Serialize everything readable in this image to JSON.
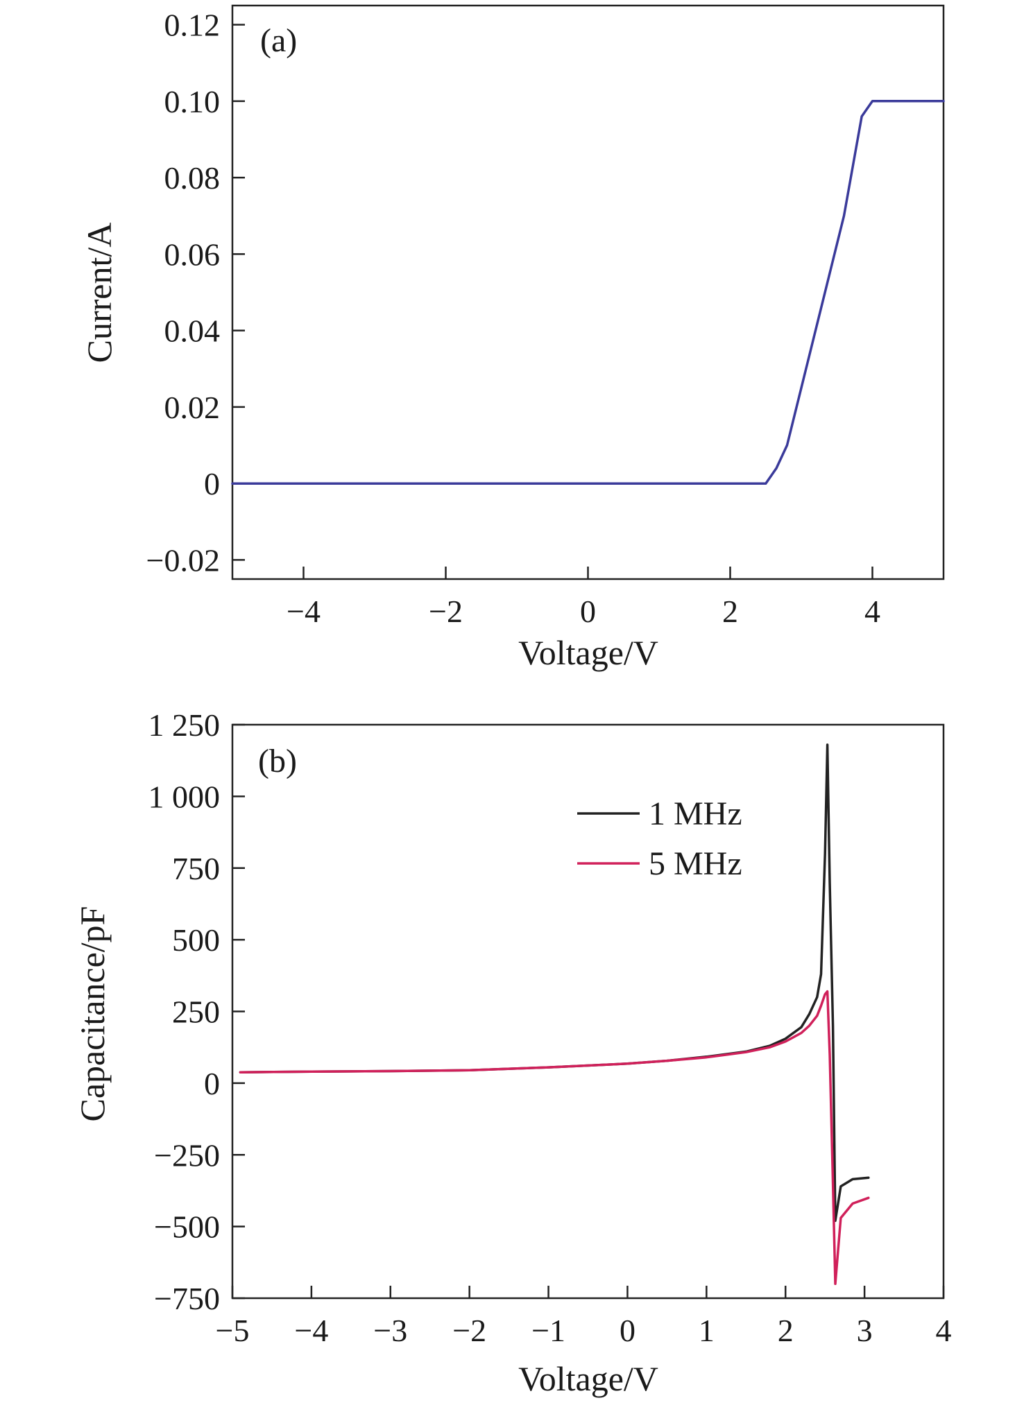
{
  "chart_data": [
    {
      "type": "line",
      "panel_label": "(a)",
      "xlabel": "Voltage/V",
      "ylabel": "Current/A",
      "xlim": [
        -5,
        5
      ],
      "ylim": [
        -0.025,
        0.125
      ],
      "xticks": [
        -4,
        -2,
        0,
        2,
        4
      ],
      "xtick_labels": [
        "−4",
        "−2",
        "0",
        "2",
        "4"
      ],
      "yticks": [
        -0.02,
        0,
        0.02,
        0.04,
        0.06,
        0.08,
        0.1,
        0.12
      ],
      "ytick_labels": [
        "−0.02",
        "0",
        "0.02",
        "0.04",
        "0.06",
        "0.08",
        "0.10",
        "0.12"
      ],
      "grid": false,
      "series": [
        {
          "color": "#3a3a9a",
          "x": [
            -5,
            -4,
            -3,
            -2,
            -1,
            0,
            1,
            2,
            2.5,
            2.65,
            2.8,
            3.0,
            3.2,
            3.4,
            3.6,
            3.85,
            4.0,
            4.5,
            5.0
          ],
          "y": [
            0,
            0,
            0,
            0,
            0,
            0,
            0,
            0,
            0,
            0.004,
            0.01,
            0.025,
            0.04,
            0.055,
            0.07,
            0.096,
            0.1,
            0.1,
            0.1
          ]
        }
      ]
    },
    {
      "type": "line",
      "panel_label": "(b)",
      "xlabel": "Voltage/V",
      "ylabel": "Capacitance/pF",
      "xlim": [
        -5,
        4
      ],
      "ylim": [
        -750,
        1250
      ],
      "xticks": [
        -5,
        -4,
        -3,
        -2,
        -1,
        0,
        1,
        2,
        3,
        4
      ],
      "xtick_labels": [
        "−5",
        "−4",
        "−3",
        "−2",
        "−1",
        "0",
        "1",
        "2",
        "3",
        "4"
      ],
      "yticks": [
        -750,
        -500,
        -250,
        0,
        250,
        500,
        750,
        1000,
        1250
      ],
      "ytick_labels": [
        "−750",
        "−500",
        "−250",
        "0",
        "250",
        "500",
        "750",
        "1 000",
        "1 250"
      ],
      "grid": false,
      "legend_position": "top-right",
      "series": [
        {
          "name": "1 MHz",
          "color": "#222222",
          "x": [
            -4.9,
            -4,
            -3,
            -2,
            -1,
            0,
            0.5,
            1,
            1.5,
            1.8,
            2.0,
            2.2,
            2.3,
            2.4,
            2.45,
            2.5,
            2.53,
            2.56,
            2.6,
            2.63,
            2.7,
            2.85,
            3.05
          ],
          "y": [
            38,
            40,
            42,
            45,
            55,
            68,
            78,
            92,
            110,
            130,
            155,
            195,
            240,
            300,
            380,
            800,
            1180,
            700,
            200,
            -480,
            -360,
            -335,
            -330
          ]
        },
        {
          "name": "5 MHz",
          "color": "#d0205a",
          "x": [
            -4.9,
            -4,
            -3,
            -2,
            -1,
            0,
            0.5,
            1,
            1.5,
            1.8,
            2.0,
            2.2,
            2.3,
            2.4,
            2.45,
            2.5,
            2.53,
            2.56,
            2.6,
            2.63,
            2.7,
            2.85,
            3.05
          ],
          "y": [
            38,
            40,
            42,
            45,
            55,
            68,
            78,
            90,
            108,
            125,
            145,
            175,
            200,
            235,
            270,
            310,
            320,
            100,
            -350,
            -700,
            -470,
            -420,
            -400
          ]
        }
      ]
    }
  ]
}
